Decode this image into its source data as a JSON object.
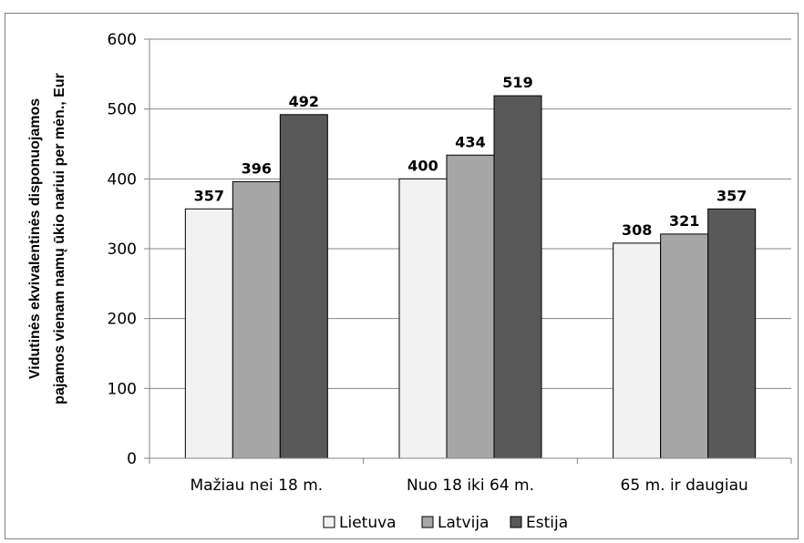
{
  "chart_data": {
    "type": "bar",
    "title": "",
    "ylabel_lines": [
      "Vidutinės ekvivalentinės disponuojamos",
      "pajamos vienam namų ūkio nariui per mėn., Eur"
    ],
    "xlabel": "",
    "categories": [
      "Mažiau nei 18 m.",
      "Nuo 18 iki 64 m.",
      "65 m. ir daugiau"
    ],
    "series": [
      {
        "name": "Lietuva",
        "values": [
          357,
          400,
          308
        ],
        "color": "#f2f2f2"
      },
      {
        "name": "Latvija",
        "values": [
          396,
          434,
          321
        ],
        "color": "#a6a6a6"
      },
      {
        "name": "Estija",
        "values": [
          492,
          519,
          357
        ],
        "color": "#595959"
      }
    ],
    "ylim": [
      0,
      600
    ],
    "yticks": [
      0,
      100,
      200,
      300,
      400,
      500,
      600
    ],
    "grid": true,
    "legend_position": "bottom",
    "data_labels": true
  }
}
